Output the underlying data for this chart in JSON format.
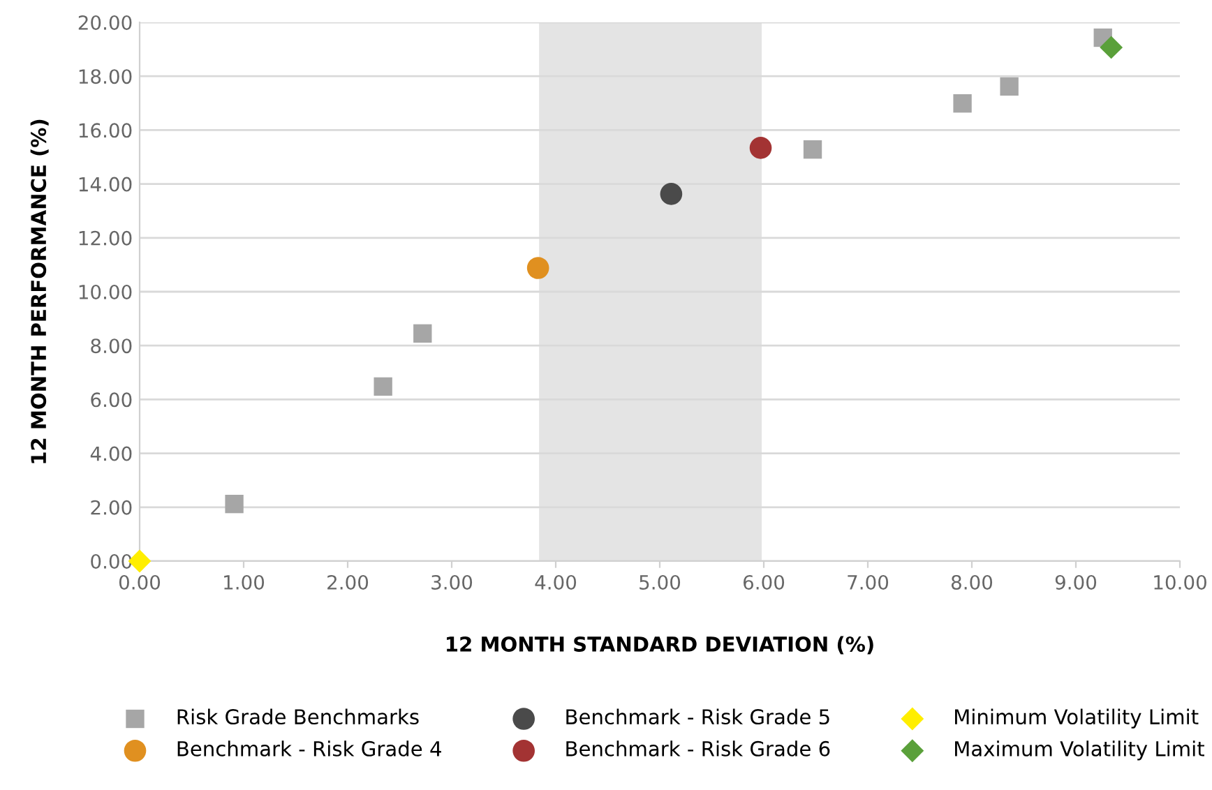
{
  "chart_data": {
    "type": "scatter",
    "xlabel": "12 MONTH STANDARD DEVIATION (%)",
    "ylabel": "12 MONTH PERFORMANCE (%)",
    "xlim": [
      0,
      10
    ],
    "xticks": [
      {
        "value": 0,
        "label": "0.00"
      },
      {
        "value": 1,
        "label": "1.00"
      },
      {
        "value": 2,
        "label": "2.00"
      },
      {
        "value": 3,
        "label": "3.00"
      },
      {
        "value": 4,
        "label": "4.00"
      },
      {
        "value": 5,
        "label": "5.00"
      },
      {
        "value": 6,
        "label": "6.00"
      },
      {
        "value": 7,
        "label": "7.00"
      },
      {
        "value": 8,
        "label": "8.00"
      },
      {
        "value": 9,
        "label": "9.00"
      },
      {
        "value": 10,
        "label": "10.00"
      }
    ],
    "ylim": [
      0,
      20
    ],
    "yticks": [
      {
        "value": 0,
        "label": "0.00"
      },
      {
        "value": 2,
        "label": "2.00"
      },
      {
        "value": 4,
        "label": "4.00"
      },
      {
        "value": 6,
        "label": "6.00"
      },
      {
        "value": 8,
        "label": "8.00"
      },
      {
        "value": 10,
        "label": "10.00"
      },
      {
        "value": 12,
        "label": "12.00"
      },
      {
        "value": 14,
        "label": "14.00"
      },
      {
        "value": 16,
        "label": "16.00"
      },
      {
        "value": 18,
        "label": "18.00"
      },
      {
        "value": 20,
        "label": "20.00"
      }
    ],
    "grid": "y",
    "legend": "bottom",
    "bands": [
      {
        "axis": "x",
        "from": 3.84,
        "to": 5.98,
        "color": "#e4e4e4"
      }
    ],
    "series": [
      {
        "name": "Risk Grade Benchmarks",
        "color": "#a6a6a6",
        "marker": "square",
        "x": [
          0.91,
          2.34,
          2.72,
          6.47,
          7.91,
          8.36,
          9.26
        ],
        "values": [
          2.12,
          6.48,
          8.45,
          15.28,
          16.99,
          17.62,
          19.43
        ]
      },
      {
        "name": "Benchmark - Risk Grade 4",
        "color": "#e09020",
        "marker": "circle",
        "x": [
          3.83
        ],
        "values": [
          10.88
        ]
      },
      {
        "name": "Benchmark - Risk Grade 5",
        "color": "#4a4a4a",
        "marker": "circle",
        "x": [
          5.11
        ],
        "values": [
          13.63
        ]
      },
      {
        "name": "Benchmark - Risk Grade 6",
        "color": "#a33333",
        "marker": "circle",
        "x": [
          5.97
        ],
        "values": [
          15.34
        ]
      },
      {
        "name": "Minimum Volatility Limit",
        "color": "#ffee00",
        "marker": "diamond",
        "x": [
          0
        ],
        "values": [
          0
        ]
      },
      {
        "name": "Maximum Volatility Limit",
        "color": "#5aa03a",
        "marker": "diamond",
        "x": [
          9.34
        ],
        "values": [
          19.07
        ]
      }
    ]
  }
}
